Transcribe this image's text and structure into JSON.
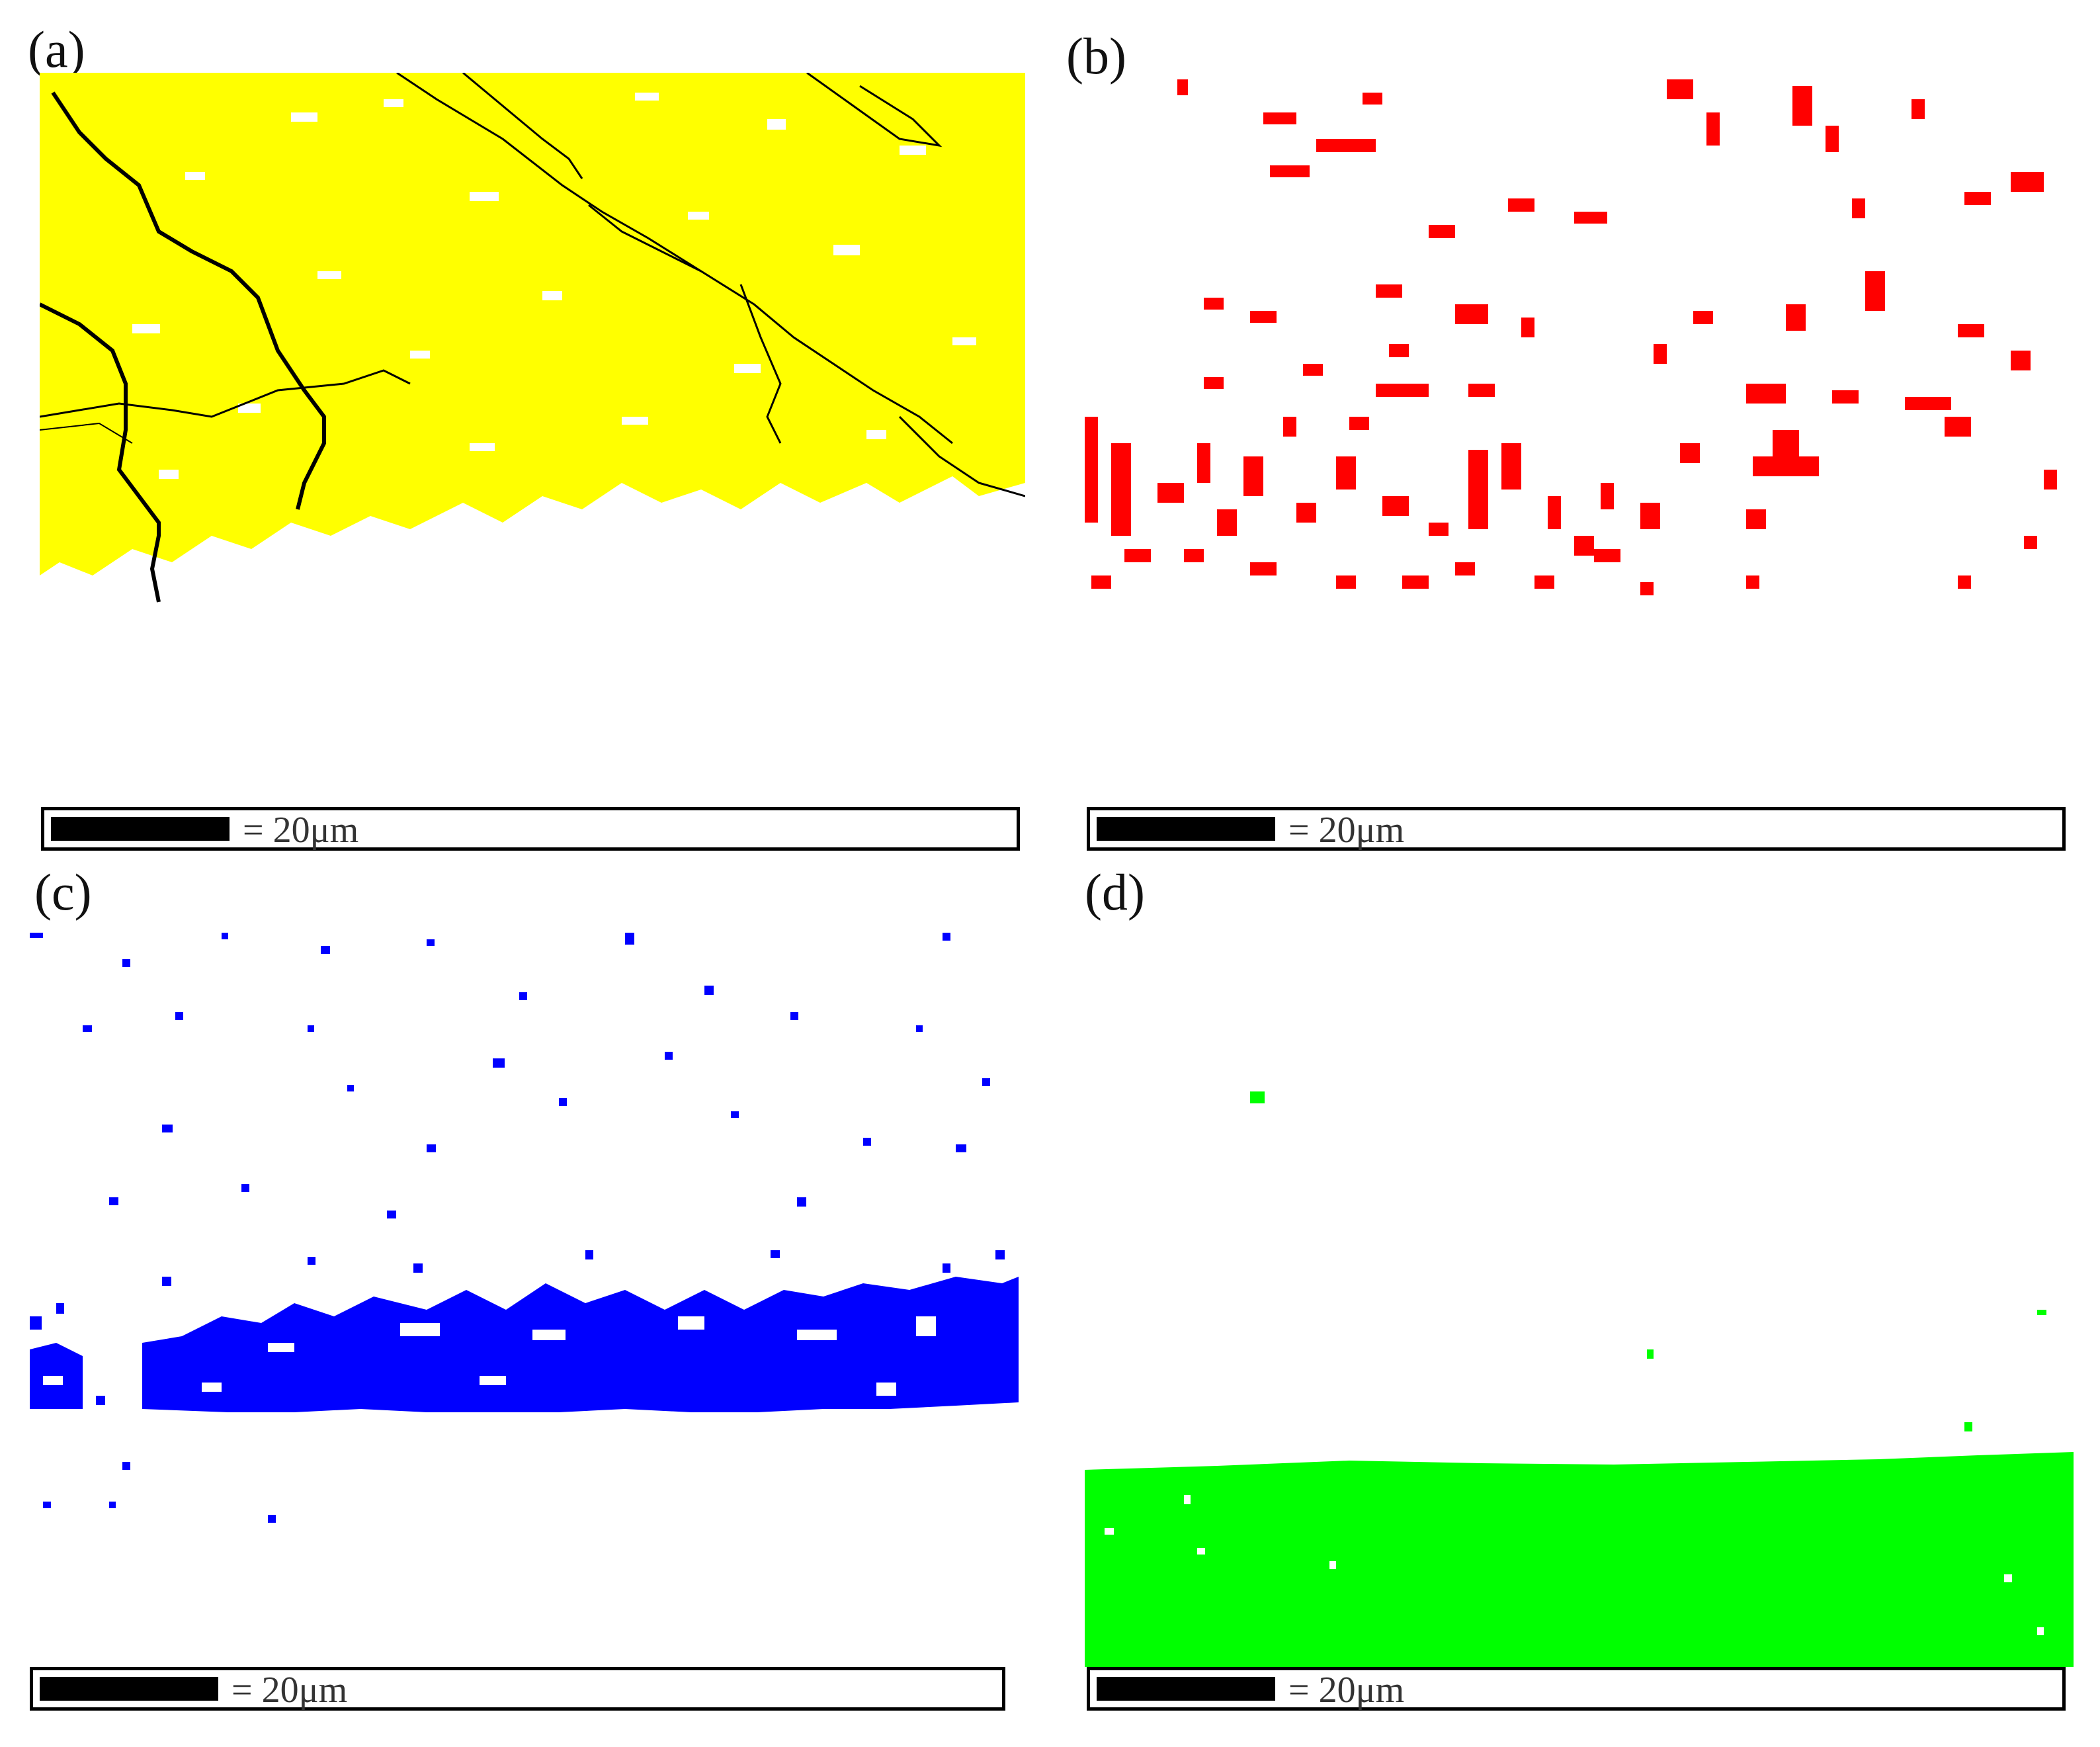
{
  "panels": [
    {
      "label": "(a)",
      "color": "#ffff00",
      "scale": "= 20μm"
    },
    {
      "label": "(b)",
      "color": "#ff0000",
      "scale": "= 20μm"
    },
    {
      "label": "(c)",
      "color": "#0000ff",
      "scale": "= 20μm"
    },
    {
      "label": "(d)",
      "color": "#00ff00",
      "scale": "= 20μm"
    }
  ],
  "colors": {
    "boundary": "#000000",
    "background": "#ffffff"
  }
}
